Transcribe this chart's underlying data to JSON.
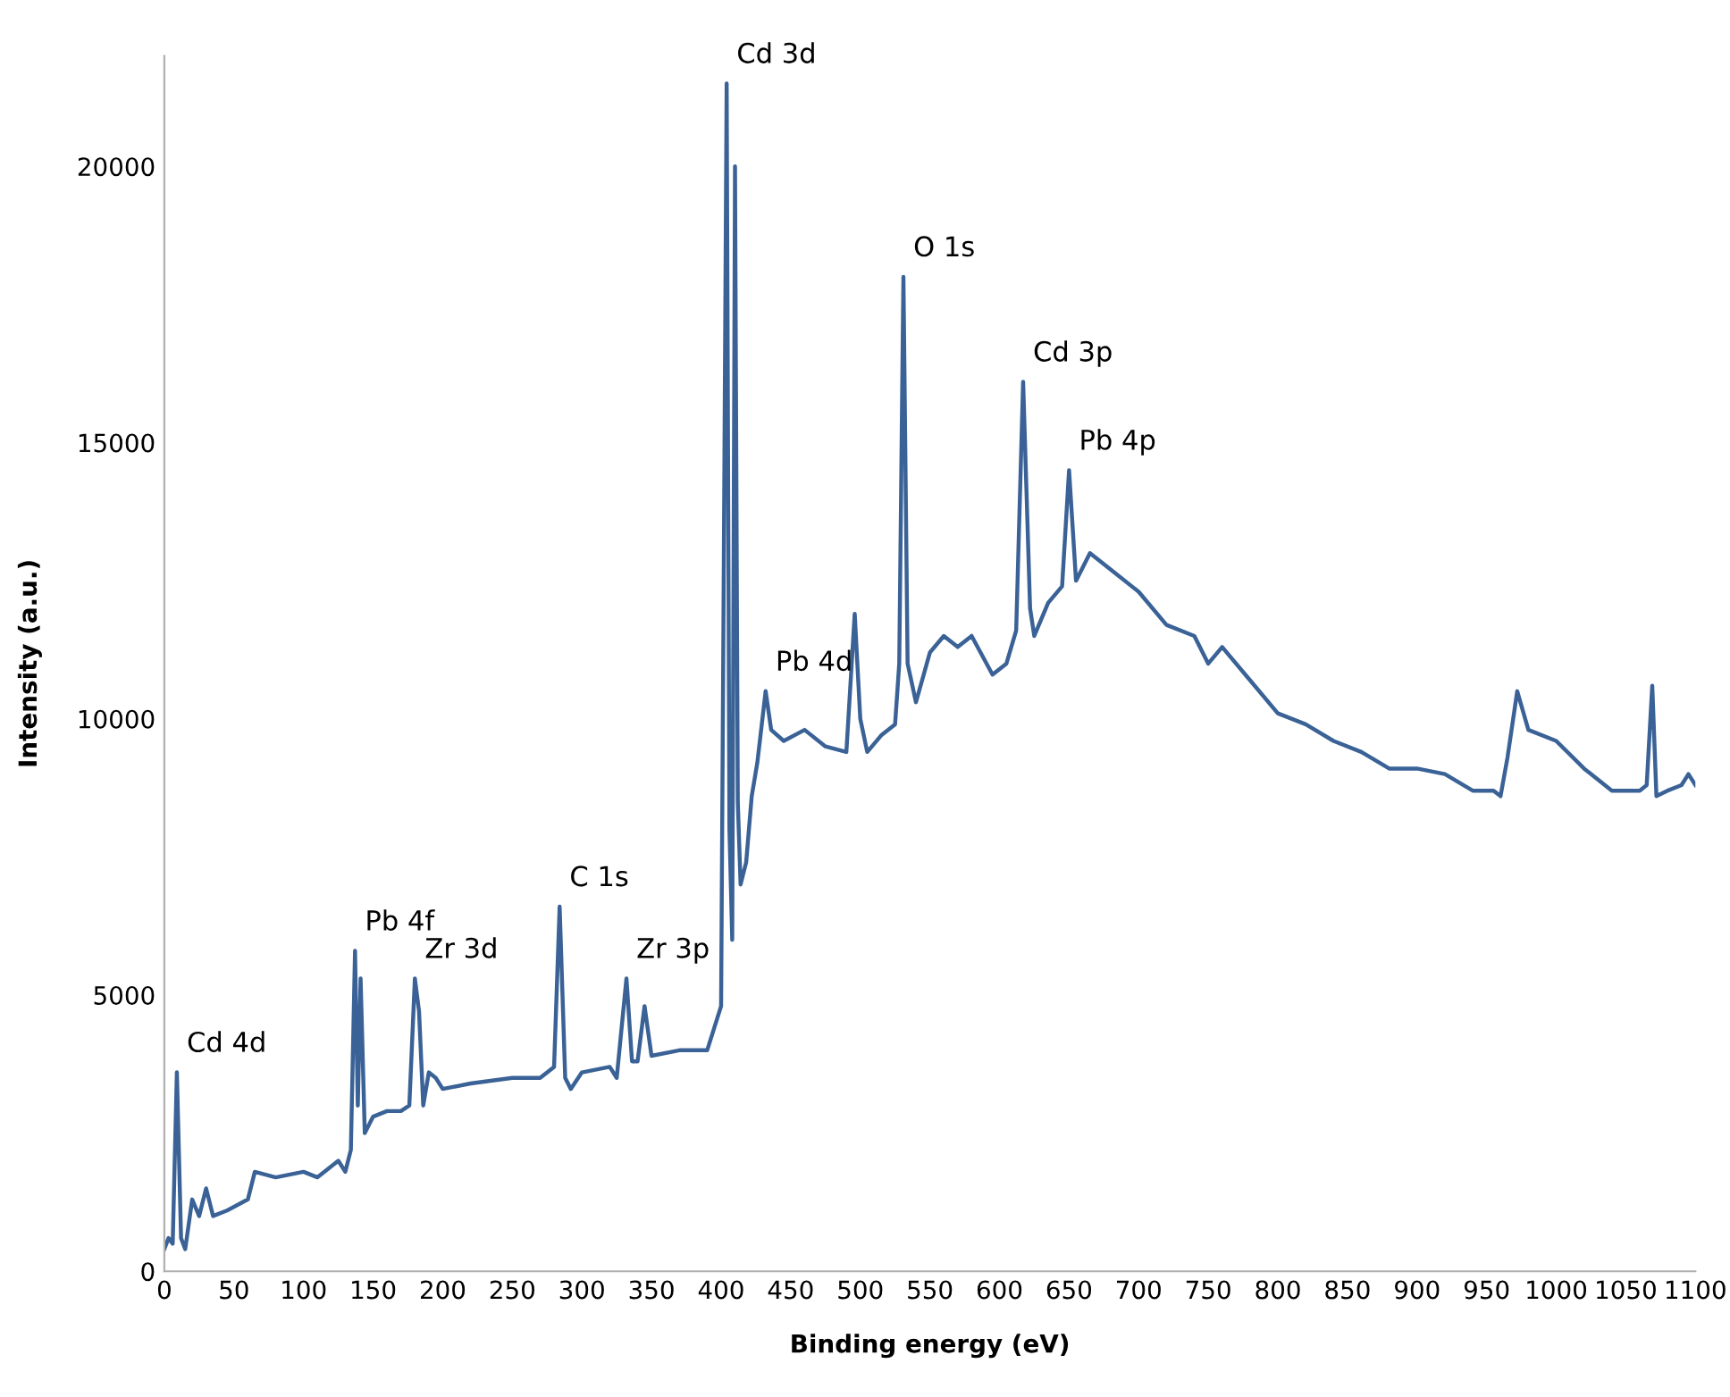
{
  "chart_data": {
    "type": "line",
    "xlabel": "Binding energy (eV)",
    "ylabel": "Intensity (a.u.)",
    "xlim": [
      0,
      1100
    ],
    "ylim": [
      0,
      22000
    ],
    "xticks": [
      0,
      50,
      100,
      150,
      200,
      250,
      300,
      350,
      400,
      450,
      500,
      550,
      600,
      650,
      700,
      750,
      800,
      850,
      900,
      950,
      1000,
      1050,
      1100
    ],
    "yticks": [
      0,
      5000,
      10000,
      15000,
      20000
    ],
    "grid": false,
    "legend": false,
    "marker": "none",
    "line_style": "solid",
    "x": [
      0,
      3,
      6,
      9,
      12,
      15,
      20,
      25,
      30,
      35,
      45,
      60,
      65,
      80,
      100,
      110,
      125,
      130,
      134,
      137,
      139,
      141,
      144,
      150,
      160,
      170,
      176,
      180,
      183,
      186,
      190,
      195,
      200,
      220,
      250,
      270,
      280,
      284,
      288,
      292,
      300,
      320,
      325,
      332,
      336,
      340,
      345,
      350,
      370,
      390,
      395,
      400,
      402,
      404,
      406,
      408,
      410,
      412,
      414,
      418,
      422,
      426,
      432,
      436,
      445,
      460,
      475,
      490,
      496,
      500,
      505,
      515,
      525,
      528,
      531,
      534,
      540,
      550,
      560,
      570,
      580,
      595,
      605,
      612,
      617,
      622,
      625,
      635,
      645,
      650,
      655,
      665,
      680,
      700,
      720,
      740,
      750,
      760,
      780,
      800,
      820,
      840,
      860,
      880,
      900,
      920,
      940,
      955,
      960,
      965,
      972,
      980,
      1000,
      1020,
      1040,
      1060,
      1065,
      1069,
      1072,
      1080,
      1090,
      1095,
      1100
    ],
    "series": [
      {
        "color": "#3a6296",
        "values": [
          400,
          600,
          500,
          3600,
          600,
          400,
          1300,
          1000,
          1500,
          1000,
          1100,
          1300,
          1800,
          1700,
          1800,
          1700,
          2000,
          1800,
          2200,
          5800,
          3000,
          5300,
          2500,
          2800,
          2900,
          2900,
          3000,
          5300,
          4700,
          3000,
          3600,
          3500,
          3300,
          3400,
          3500,
          3500,
          3700,
          6600,
          3500,
          3300,
          3600,
          3700,
          3500,
          5300,
          3800,
          3800,
          4800,
          3900,
          4000,
          4000,
          4400,
          4800,
          13000,
          21500,
          8000,
          6000,
          20000,
          8500,
          7000,
          7400,
          8600,
          9200,
          10500,
          9800,
          9600,
          9800,
          9500,
          9400,
          11900,
          10000,
          9400,
          9700,
          9900,
          11000,
          18000,
          11000,
          10300,
          11200,
          11500,
          11300,
          11500,
          10800,
          11000,
          11600,
          16100,
          12000,
          11500,
          12100,
          12400,
          14500,
          12500,
          13000,
          12700,
          12300,
          11700,
          11500,
          11000,
          11300,
          10700,
          10100,
          9900,
          9600,
          9400,
          9100,
          9100,
          9000,
          8700,
          8700,
          8600,
          9300,
          10500,
          9800,
          9600,
          9100,
          8700,
          8700,
          8800,
          10600,
          8600,
          8700,
          8800,
          9000,
          8800
        ]
      }
    ],
    "annotations": [
      {
        "text": "Cd 4d",
        "x": 9,
        "y": 3600
      },
      {
        "text": "Pb 4f",
        "x": 137,
        "y": 5800
      },
      {
        "text": "Zr 3d",
        "x": 180,
        "y": 5300
      },
      {
        "text": "C 1s",
        "x": 284,
        "y": 6600
      },
      {
        "text": "Zr 3p",
        "x": 332,
        "y": 5300
      },
      {
        "text": "Cd 3d",
        "x": 404,
        "y": 21500
      },
      {
        "text": "Pb 4d",
        "x": 432,
        "y": 10500
      },
      {
        "text": "O 1s",
        "x": 531,
        "y": 18000
      },
      {
        "text": "Cd 3p",
        "x": 617,
        "y": 16100
      },
      {
        "text": "Pb 4p",
        "x": 650,
        "y": 14500
      }
    ]
  }
}
